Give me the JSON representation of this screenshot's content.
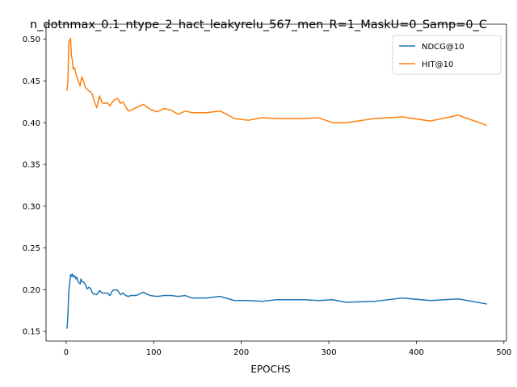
{
  "chart_data": {
    "type": "line",
    "title": "n_dotnmax_0.1_ntype_2_hact_leakyrelu_567_men_R=1_MaskU=0_Samp=0_C",
    "xlabel": "EPOCHS",
    "ylabel": "",
    "xlim": [
      -23,
      503
    ],
    "ylim": [
      0.1385,
      0.518
    ],
    "xticks": [
      0,
      100,
      200,
      300,
      400,
      500
    ],
    "xtick_labels": [
      "0",
      "100",
      "200",
      "300",
      "400",
      "500"
    ],
    "yticks": [
      0.15,
      0.2,
      0.25,
      0.3,
      0.35,
      0.4,
      0.45,
      0.5
    ],
    "ytick_labels": [
      "0.15",
      "0.20",
      "0.25",
      "0.30",
      "0.35",
      "0.40",
      "0.45",
      "0.50"
    ],
    "grid": false,
    "legend_position": "top-right",
    "series": [
      {
        "name": "NDCG@10",
        "color": "#1f77b4",
        "x": [
          1,
          2,
          3,
          4,
          5,
          6,
          7,
          8,
          9,
          10,
          11,
          12,
          14,
          16,
          17,
          18,
          20,
          22,
          24,
          26,
          28,
          30,
          32,
          35,
          38,
          41,
          44,
          47,
          50,
          53,
          56,
          59,
          62,
          65,
          68,
          71,
          74,
          80,
          88,
          96,
          104,
          112,
          120,
          128,
          136,
          144,
          160,
          176,
          192,
          208,
          224,
          240,
          256,
          272,
          288,
          304,
          320,
          352,
          384,
          416,
          448,
          480
        ],
        "y": [
          0.154,
          0.17,
          0.198,
          0.207,
          0.218,
          0.216,
          0.219,
          0.215,
          0.217,
          0.216,
          0.213,
          0.215,
          0.209,
          0.207,
          0.213,
          0.21,
          0.209,
          0.206,
          0.201,
          0.203,
          0.201,
          0.196,
          0.195,
          0.194,
          0.199,
          0.196,
          0.196,
          0.196,
          0.193,
          0.199,
          0.2,
          0.199,
          0.194,
          0.196,
          0.193,
          0.192,
          0.193,
          0.193,
          0.197,
          0.193,
          0.192,
          0.193,
          0.193,
          0.192,
          0.193,
          0.19,
          0.19,
          0.192,
          0.187,
          0.187,
          0.186,
          0.188,
          0.188,
          0.188,
          0.187,
          0.188,
          0.185,
          0.186,
          0.19,
          0.187,
          0.189,
          0.183
        ]
      },
      {
        "name": "HIT@10",
        "color": "#ff7f0e",
        "x": [
          1,
          2,
          3,
          4,
          5,
          6,
          7,
          8,
          9,
          10,
          11,
          12,
          14,
          16,
          17,
          18,
          20,
          22,
          24,
          26,
          28,
          30,
          32,
          35,
          38,
          41,
          44,
          47,
          50,
          53,
          56,
          59,
          62,
          65,
          68,
          71,
          74,
          80,
          88,
          96,
          104,
          112,
          120,
          128,
          136,
          144,
          160,
          176,
          192,
          208,
          224,
          240,
          256,
          272,
          288,
          304,
          320,
          352,
          384,
          416,
          448,
          480
        ],
        "y": [
          0.439,
          0.449,
          0.497,
          0.499,
          0.501,
          0.48,
          0.475,
          0.464,
          0.466,
          0.465,
          0.459,
          0.456,
          0.449,
          0.444,
          0.451,
          0.455,
          0.449,
          0.442,
          0.44,
          0.438,
          0.437,
          0.434,
          0.426,
          0.418,
          0.432,
          0.424,
          0.423,
          0.424,
          0.42,
          0.425,
          0.428,
          0.429,
          0.423,
          0.425,
          0.419,
          0.414,
          0.415,
          0.418,
          0.422,
          0.416,
          0.413,
          0.417,
          0.415,
          0.41,
          0.414,
          0.412,
          0.412,
          0.414,
          0.405,
          0.403,
          0.406,
          0.405,
          0.405,
          0.405,
          0.406,
          0.4,
          0.4,
          0.405,
          0.407,
          0.402,
          0.409,
          0.397
        ]
      }
    ]
  }
}
